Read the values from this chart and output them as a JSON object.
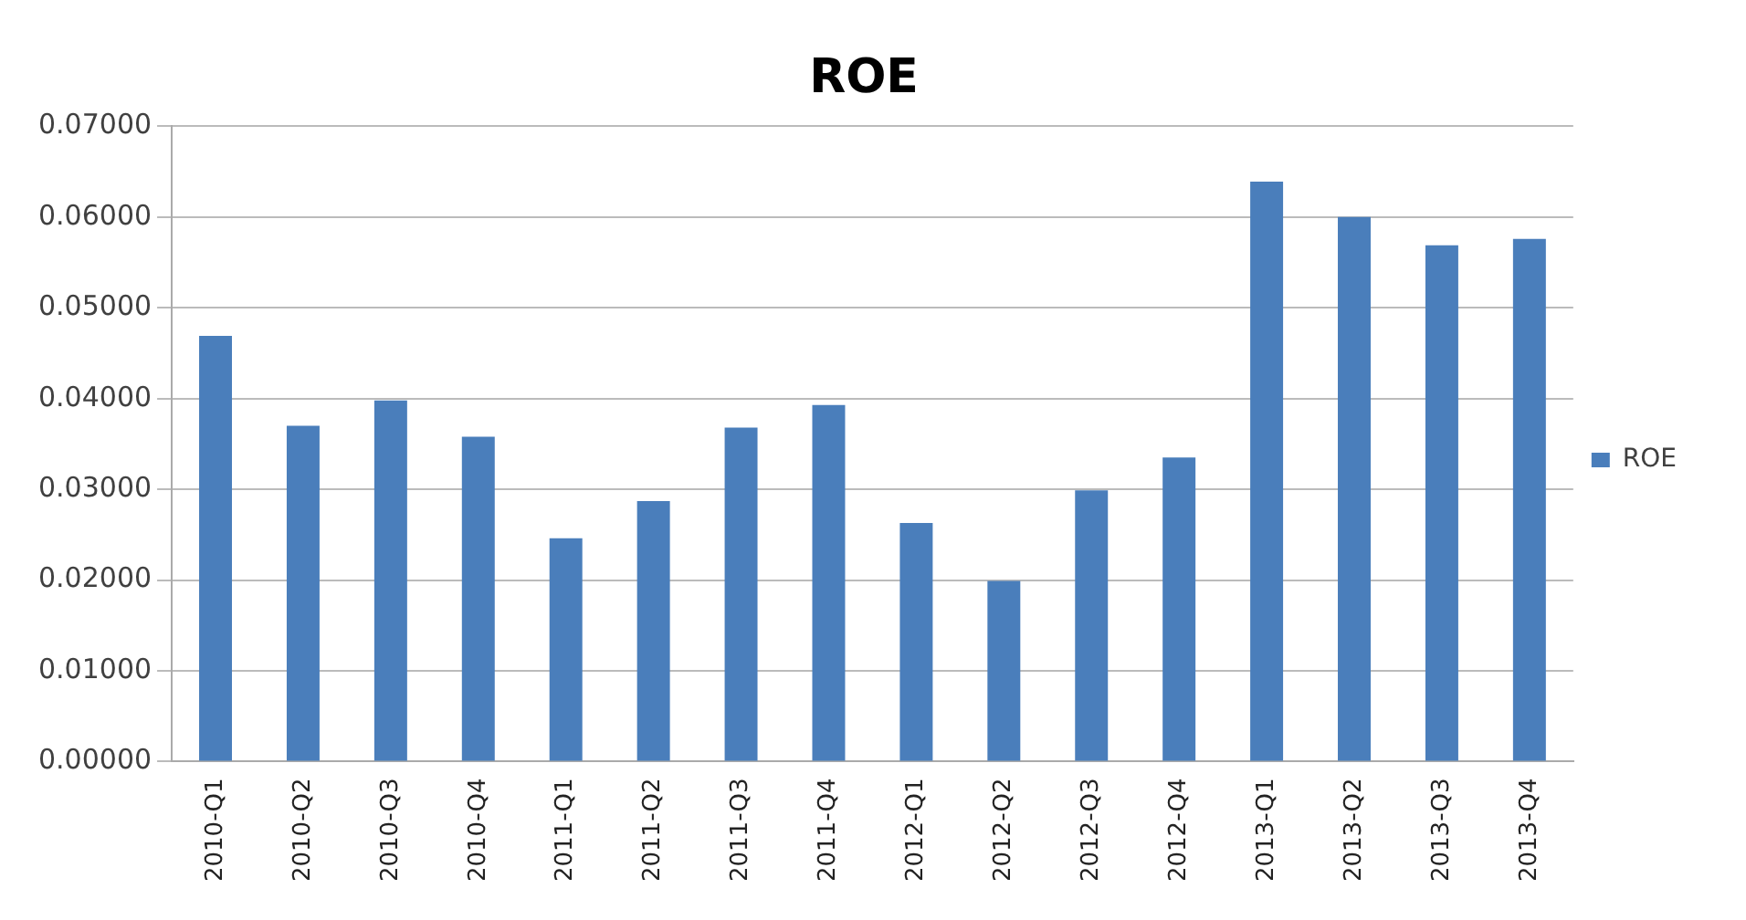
{
  "chart_data": {
    "type": "bar",
    "title": "ROE",
    "categories": [
      "2010-Q1",
      "2010-Q2",
      "2010-Q3",
      "2010-Q4",
      "2011-Q1",
      "2011-Q2",
      "2011-Q3",
      "2011-Q4",
      "2012-Q1",
      "2012-Q2",
      "2012-Q3",
      "2012-Q4",
      "2013-Q1",
      "2013-Q2",
      "2013-Q3",
      "2013-Q4"
    ],
    "series": [
      {
        "name": "ROE",
        "color": "#4a7ebb",
        "values": [
          0.0469,
          0.037,
          0.0398,
          0.0358,
          0.0246,
          0.0287,
          0.0368,
          0.0393,
          0.0263,
          0.0199,
          0.0299,
          0.0335,
          0.0639,
          0.06,
          0.0569,
          0.0576
        ]
      }
    ],
    "ylim": [
      0,
      0.07
    ],
    "yticks": [
      {
        "value": 0,
        "label": "0.00000"
      },
      {
        "value": 0.01,
        "label": "0.01000"
      },
      {
        "value": 0.02,
        "label": "0.02000"
      },
      {
        "value": 0.03,
        "label": "0.03000"
      },
      {
        "value": 0.04,
        "label": "0.04000"
      },
      {
        "value": 0.05,
        "label": "0.05000"
      },
      {
        "value": 0.06,
        "label": "0.06000"
      },
      {
        "value": 0.07,
        "label": "0.07000"
      }
    ],
    "grid": "y",
    "legend": "right"
  }
}
